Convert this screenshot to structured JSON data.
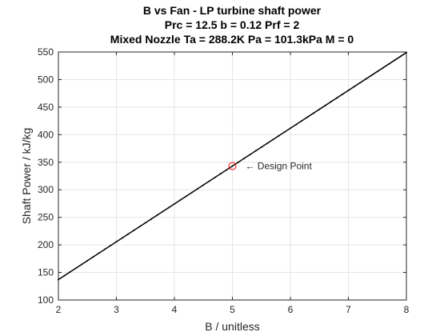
{
  "chart_data": {
    "type": "line",
    "title_lines": [
      "B vs Fan - LP turbine shaft power",
      "Prc = 12.5 b = 0.12 Prf = 2",
      "Mixed Nozzle Ta = 288.2K Pa = 101.3kPa M = 0"
    ],
    "xlabel": "B / unitless",
    "ylabel": "Shaft Power / kJ/kg",
    "xlim": [
      2,
      8
    ],
    "ylim": [
      100,
      550
    ],
    "xticks": [
      2,
      3,
      4,
      5,
      6,
      7,
      8
    ],
    "yticks": [
      100,
      150,
      200,
      250,
      300,
      350,
      400,
      450,
      500,
      550
    ],
    "grid": true,
    "series": [
      {
        "color": "#000000",
        "x": [
          2,
          8
        ],
        "y": [
          137,
          549
        ]
      }
    ],
    "design_point": {
      "x": 5,
      "y": 343,
      "color": "#ff0000"
    },
    "annotation": {
      "text": "← Design Point",
      "x": 5.22,
      "y": 343
    }
  }
}
